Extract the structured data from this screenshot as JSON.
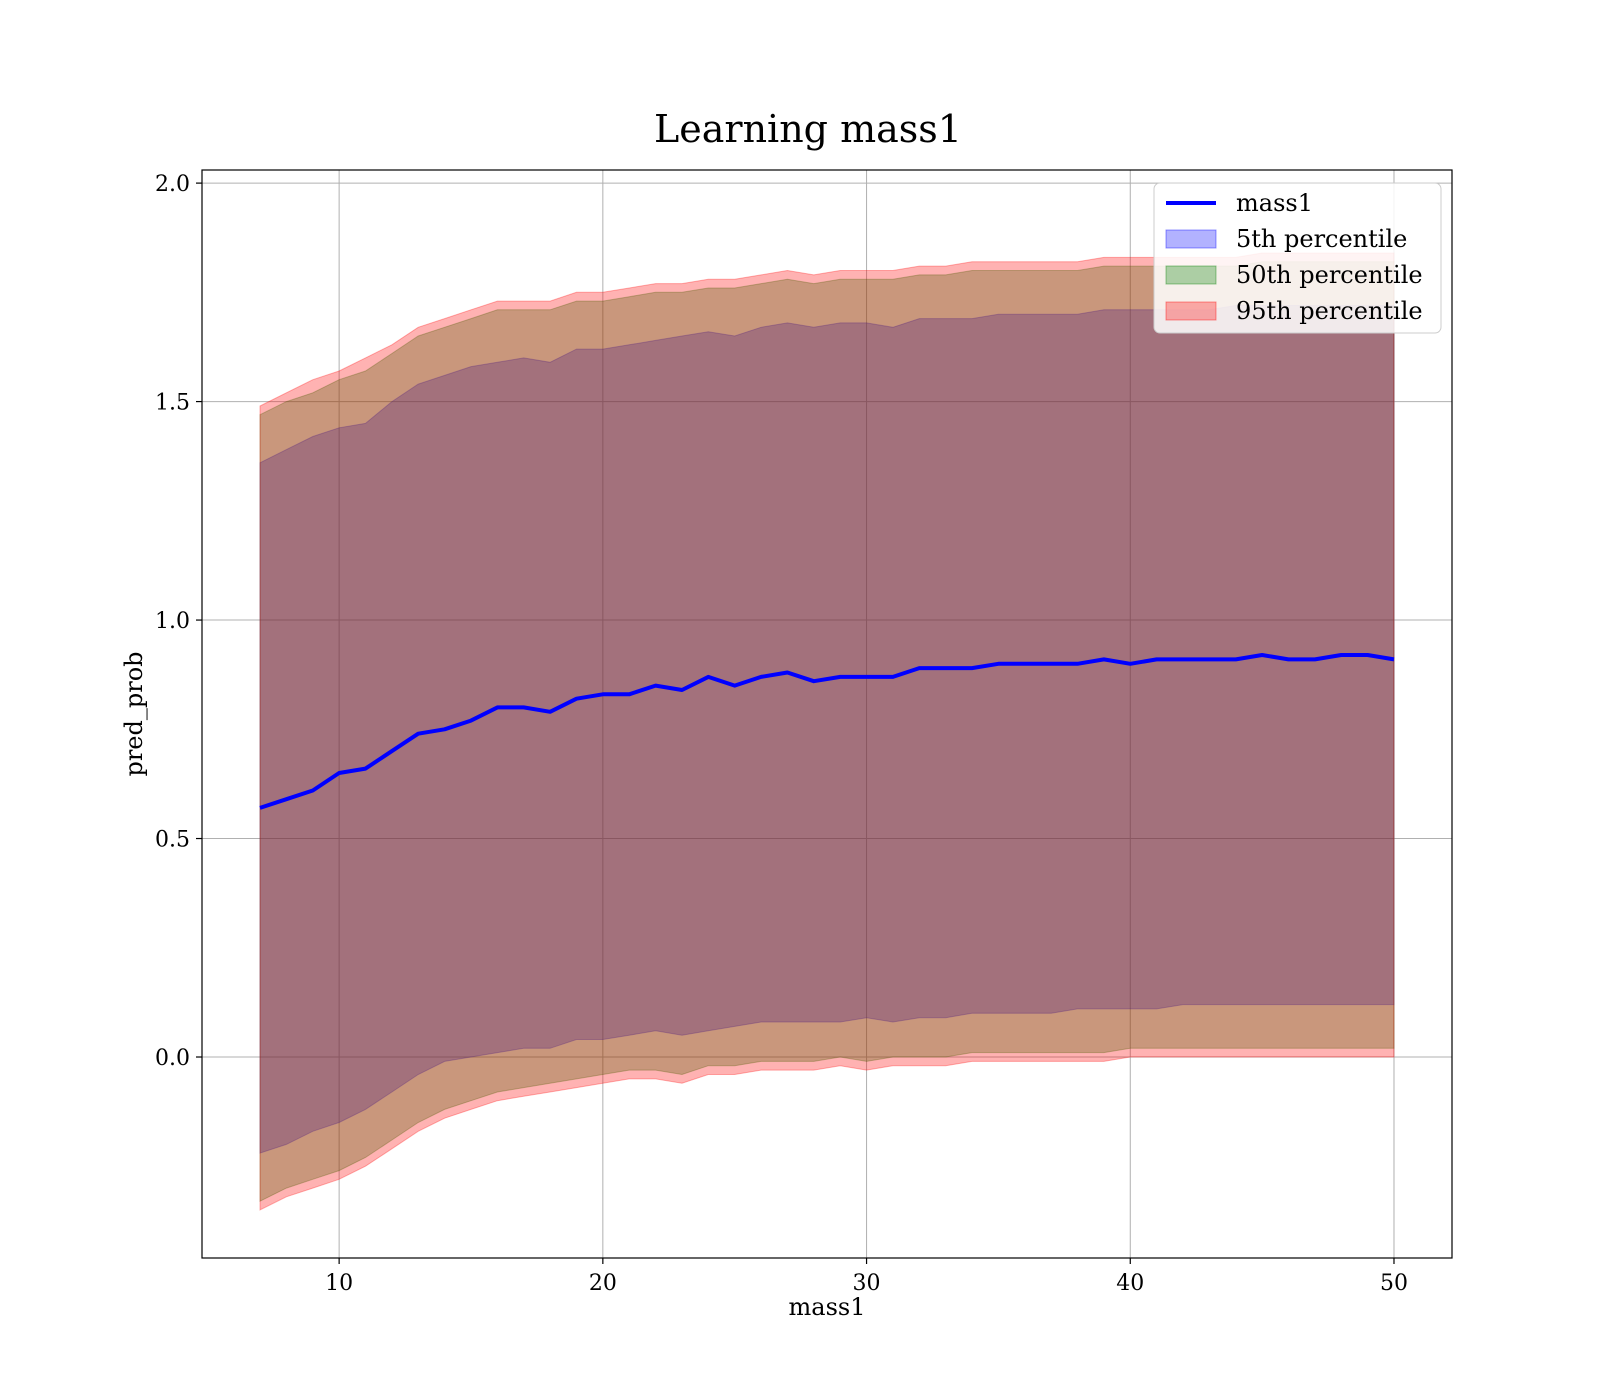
{
  "chart_data": {
    "type": "area",
    "title": "Learning mass1",
    "xlabel": "mass1",
    "ylabel": "pred_prob",
    "xlim": [
      4.8,
      52.2
    ],
    "ylim": [
      -0.46,
      2.03
    ],
    "xticks": [
      10,
      20,
      30,
      40,
      50
    ],
    "yticks": [
      0.0,
      0.5,
      1.0,
      1.5,
      2.0
    ],
    "xtick_labels": [
      "10",
      "20",
      "30",
      "40",
      50
    ],
    "ytick_labels": [
      "0.0",
      "0.5",
      "1.0",
      "1.5",
      "2.0"
    ],
    "grid": true,
    "legend_position": "top-right",
    "x": [
      7.0,
      8.0,
      9.0,
      10.0,
      11.0,
      12.0,
      13.0,
      14.0,
      15.0,
      16.0,
      17.0,
      18.0,
      19.0,
      20.0,
      21.0,
      22.0,
      23.0,
      24.0,
      25.0,
      26.0,
      27.0,
      28.0,
      29.0,
      30.0,
      31.0,
      32.0,
      33.0,
      34.0,
      35.0,
      36.0,
      37.0,
      38.0,
      39.0,
      40.0,
      41.0,
      42.0,
      43.0,
      44.0,
      45.0,
      46.0,
      47.0,
      48.0,
      49.0,
      50.0
    ],
    "series": [
      {
        "name": "mass1",
        "kind": "line",
        "color": "#0000ff",
        "values": [
          0.57,
          0.59,
          0.61,
          0.65,
          0.66,
          0.7,
          0.74,
          0.75,
          0.77,
          0.8,
          0.8,
          0.79,
          0.82,
          0.83,
          0.83,
          0.85,
          0.84,
          0.87,
          0.85,
          0.87,
          0.88,
          0.86,
          0.87,
          0.87,
          0.87,
          0.89,
          0.89,
          0.89,
          0.9,
          0.9,
          0.9,
          0.9,
          0.91,
          0.9,
          0.91,
          0.91,
          0.91,
          0.91,
          0.92,
          0.91,
          0.91,
          0.92,
          0.92,
          0.91
        ]
      },
      {
        "name": "5th percentile",
        "kind": "band",
        "color": "#0000ff",
        "lower": [
          -0.22,
          -0.2,
          -0.17,
          -0.15,
          -0.12,
          -0.08,
          -0.04,
          -0.01,
          0.0,
          0.01,
          0.02,
          0.02,
          0.04,
          0.04,
          0.05,
          0.06,
          0.05,
          0.06,
          0.07,
          0.08,
          0.08,
          0.08,
          0.08,
          0.09,
          0.08,
          0.09,
          0.09,
          0.1,
          0.1,
          0.1,
          0.1,
          0.11,
          0.11,
          0.11,
          0.11,
          0.12,
          0.12,
          0.12,
          0.12,
          0.12,
          0.12,
          0.12,
          0.12,
          0.12
        ],
        "upper": [
          1.36,
          1.39,
          1.42,
          1.44,
          1.45,
          1.5,
          1.54,
          1.56,
          1.58,
          1.59,
          1.6,
          1.59,
          1.62,
          1.62,
          1.63,
          1.64,
          1.65,
          1.66,
          1.65,
          1.67,
          1.68,
          1.67,
          1.68,
          1.68,
          1.67,
          1.69,
          1.69,
          1.69,
          1.7,
          1.7,
          1.7,
          1.7,
          1.71,
          1.71,
          1.71,
          1.71,
          1.71,
          1.72,
          1.72,
          1.72,
          1.72,
          1.72,
          1.72,
          1.72
        ]
      },
      {
        "name": "50th percentile",
        "kind": "band",
        "color": "#008000",
        "lower": [
          -0.33,
          -0.3,
          -0.28,
          -0.26,
          -0.23,
          -0.19,
          -0.15,
          -0.12,
          -0.1,
          -0.08,
          -0.07,
          -0.06,
          -0.05,
          -0.04,
          -0.03,
          -0.03,
          -0.04,
          -0.02,
          -0.02,
          -0.01,
          -0.01,
          -0.01,
          0.0,
          -0.01,
          0.0,
          0.0,
          0.0,
          0.01,
          0.01,
          0.01,
          0.01,
          0.01,
          0.01,
          0.02,
          0.02,
          0.02,
          0.02,
          0.02,
          0.02,
          0.02,
          0.02,
          0.02,
          0.02,
          0.02
        ],
        "upper": [
          1.47,
          1.5,
          1.52,
          1.55,
          1.57,
          1.61,
          1.65,
          1.67,
          1.69,
          1.71,
          1.71,
          1.71,
          1.73,
          1.73,
          1.74,
          1.75,
          1.75,
          1.76,
          1.76,
          1.77,
          1.78,
          1.77,
          1.78,
          1.78,
          1.78,
          1.79,
          1.79,
          1.8,
          1.8,
          1.8,
          1.8,
          1.8,
          1.81,
          1.81,
          1.81,
          1.81,
          1.81,
          1.81,
          1.82,
          1.82,
          1.82,
          1.82,
          1.82,
          1.82
        ]
      },
      {
        "name": "95th percentile",
        "kind": "band",
        "color": "#ff0000",
        "lower": [
          -0.35,
          -0.32,
          -0.3,
          -0.28,
          -0.25,
          -0.21,
          -0.17,
          -0.14,
          -0.12,
          -0.1,
          -0.09,
          -0.08,
          -0.07,
          -0.06,
          -0.05,
          -0.05,
          -0.06,
          -0.04,
          -0.04,
          -0.03,
          -0.03,
          -0.03,
          -0.02,
          -0.03,
          -0.02,
          -0.02,
          -0.02,
          -0.01,
          -0.01,
          -0.01,
          -0.01,
          -0.01,
          -0.01,
          0.0,
          0.0,
          0.0,
          0.0,
          0.0,
          0.0,
          0.0,
          0.0,
          0.0,
          0.0,
          0.0
        ],
        "upper": [
          1.49,
          1.52,
          1.55,
          1.57,
          1.6,
          1.63,
          1.67,
          1.69,
          1.71,
          1.73,
          1.73,
          1.73,
          1.75,
          1.75,
          1.76,
          1.77,
          1.77,
          1.78,
          1.78,
          1.79,
          1.8,
          1.79,
          1.8,
          1.8,
          1.8,
          1.81,
          1.81,
          1.82,
          1.82,
          1.82,
          1.82,
          1.82,
          1.83,
          1.83,
          1.83,
          1.83,
          1.83,
          1.83,
          1.84,
          1.84,
          1.84,
          1.84,
          1.84,
          1.84
        ]
      }
    ]
  }
}
